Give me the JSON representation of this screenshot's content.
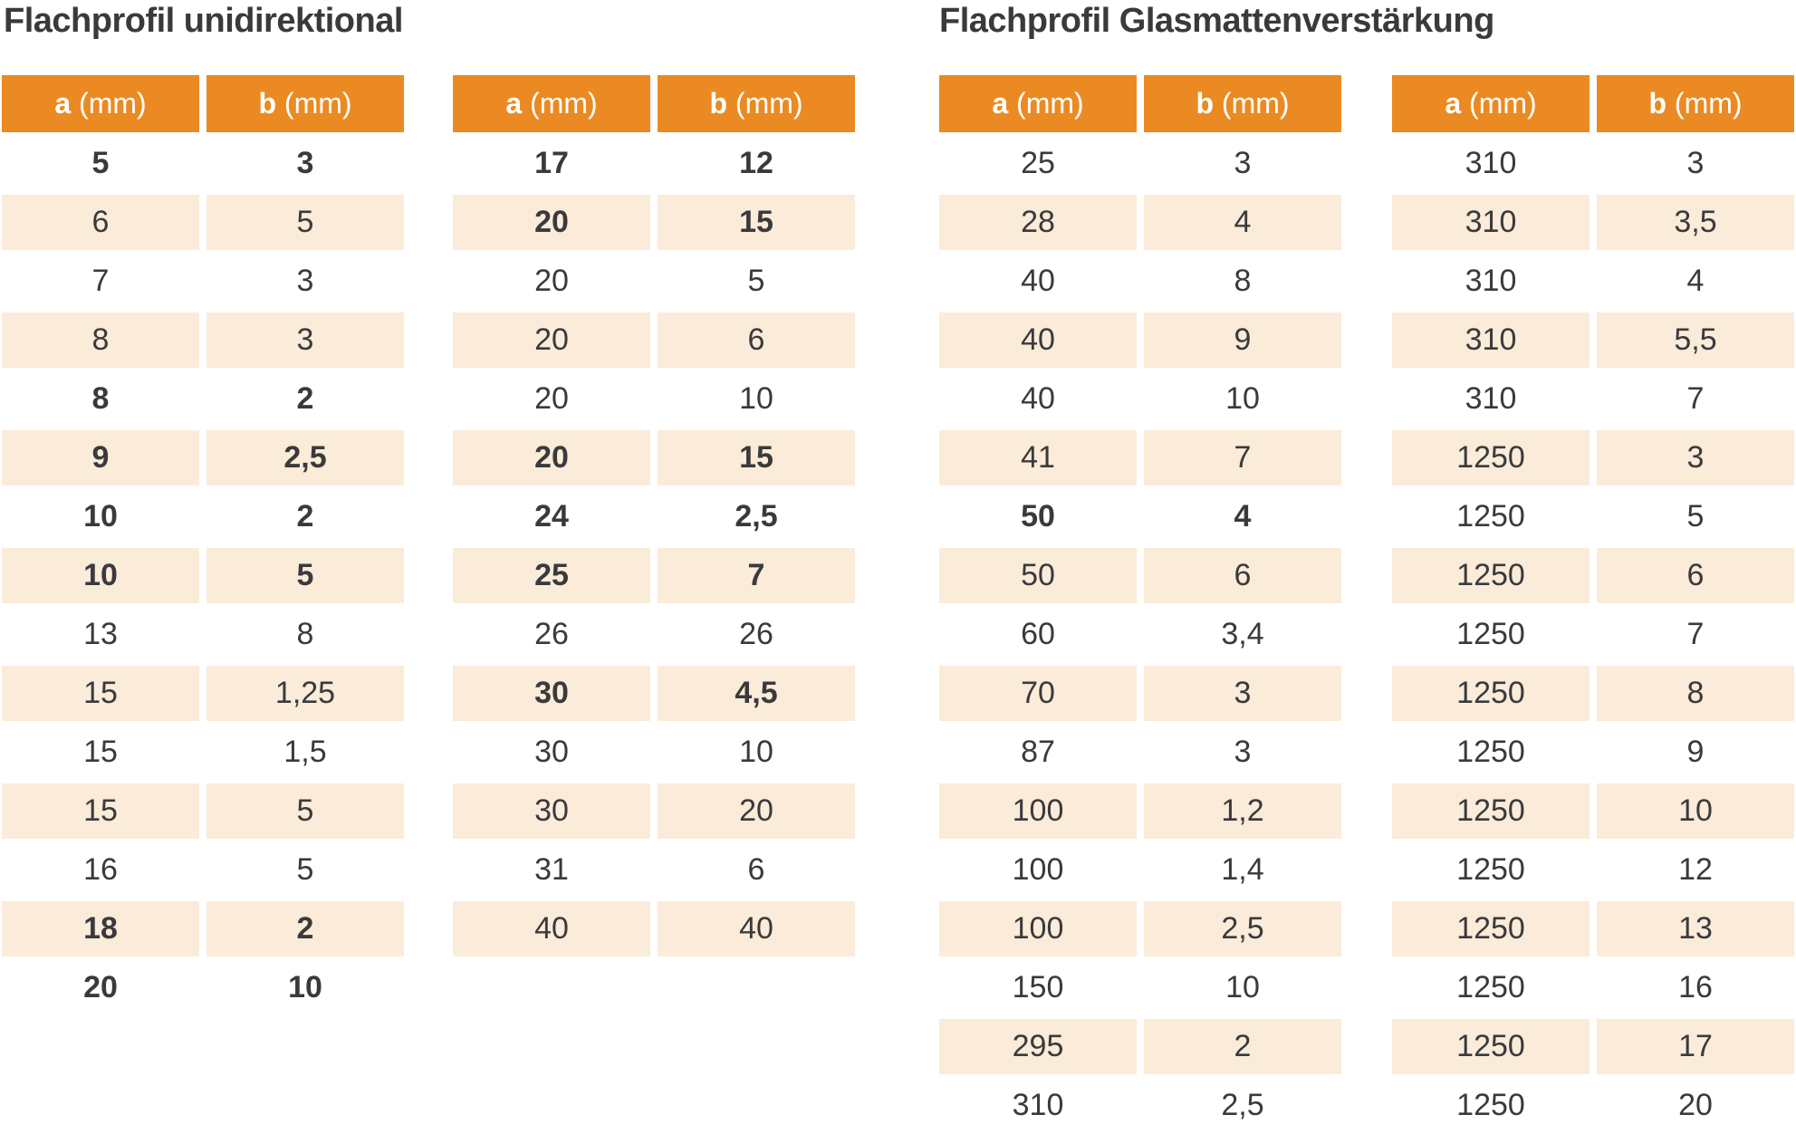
{
  "colors": {
    "header_bg": "#EB8A22",
    "header_text": "#FFFFFF",
    "row_alt_bg": "#FBEBD9",
    "text": "#3A3A3C"
  },
  "sections": [
    {
      "title": "Flachprofil unidirektional",
      "tables": [
        {
          "headers": [
            {
              "key": "a",
              "unit": "(mm)"
            },
            {
              "key": "b",
              "unit": "(mm)"
            }
          ],
          "rows": [
            {
              "a": "5",
              "b": "3",
              "bold": true
            },
            {
              "a": "6",
              "b": "5",
              "bold": false
            },
            {
              "a": "7",
              "b": "3",
              "bold": false
            },
            {
              "a": "8",
              "b": "3",
              "bold": false
            },
            {
              "a": "8",
              "b": "2",
              "bold": true
            },
            {
              "a": "9",
              "b": "2,5",
              "bold": true
            },
            {
              "a": "10",
              "b": "2",
              "bold": true
            },
            {
              "a": "10",
              "b": "5",
              "bold": true
            },
            {
              "a": "13",
              "b": "8",
              "bold": false
            },
            {
              "a": "15",
              "b": "1,25",
              "bold": false
            },
            {
              "a": "15",
              "b": "1,5",
              "bold": false
            },
            {
              "a": "15",
              "b": "5",
              "bold": false
            },
            {
              "a": "16",
              "b": "5",
              "bold": false
            },
            {
              "a": "18",
              "b": "2",
              "bold": true
            },
            {
              "a": "20",
              "b": "10",
              "bold": true
            }
          ]
        },
        {
          "headers": [
            {
              "key": "a",
              "unit": "(mm)"
            },
            {
              "key": "b",
              "unit": "(mm)"
            }
          ],
          "rows": [
            {
              "a": "17",
              "b": "12",
              "bold": true
            },
            {
              "a": "20",
              "b": "15",
              "bold": true
            },
            {
              "a": "20",
              "b": "5",
              "bold": false
            },
            {
              "a": "20",
              "b": "6",
              "bold": false
            },
            {
              "a": "20",
              "b": "10",
              "bold": false
            },
            {
              "a": "20",
              "b": "15",
              "bold": true
            },
            {
              "a": "24",
              "b": "2,5",
              "bold": true
            },
            {
              "a": "25",
              "b": "7",
              "bold": true
            },
            {
              "a": "26",
              "b": "26",
              "bold": false
            },
            {
              "a": "30",
              "b": "4,5",
              "bold": true
            },
            {
              "a": "30",
              "b": "10",
              "bold": false
            },
            {
              "a": "30",
              "b": "20",
              "bold": false
            },
            {
              "a": "31",
              "b": "6",
              "bold": false
            },
            {
              "a": "40",
              "b": "40",
              "bold": false
            }
          ]
        }
      ]
    },
    {
      "title": "Flachprofil Glasmattenverstärkung",
      "tables": [
        {
          "headers": [
            {
              "key": "a",
              "unit": "(mm)"
            },
            {
              "key": "b",
              "unit": "(mm)"
            }
          ],
          "rows": [
            {
              "a": "25",
              "b": "3",
              "bold": false
            },
            {
              "a": "28",
              "b": "4",
              "bold": false
            },
            {
              "a": "40",
              "b": "8",
              "bold": false
            },
            {
              "a": "40",
              "b": "9",
              "bold": false
            },
            {
              "a": "40",
              "b": "10",
              "bold": false
            },
            {
              "a": "41",
              "b": "7",
              "bold": false
            },
            {
              "a": "50",
              "b": "4",
              "bold": true
            },
            {
              "a": "50",
              "b": "6",
              "bold": false
            },
            {
              "a": "60",
              "b": "3,4",
              "bold": false
            },
            {
              "a": "70",
              "b": "3",
              "bold": false
            },
            {
              "a": "87",
              "b": "3",
              "bold": false
            },
            {
              "a": "100",
              "b": "1,2",
              "bold": false
            },
            {
              "a": "100",
              "b": "1,4",
              "bold": false
            },
            {
              "a": "100",
              "b": "2,5",
              "bold": false
            },
            {
              "a": "150",
              "b": "10",
              "bold": false
            },
            {
              "a": "295",
              "b": "2",
              "bold": false
            },
            {
              "a": "310",
              "b": "2,5",
              "bold": false
            }
          ]
        },
        {
          "headers": [
            {
              "key": "a",
              "unit": "(mm)"
            },
            {
              "key": "b",
              "unit": "(mm)"
            }
          ],
          "rows": [
            {
              "a": "310",
              "b": "3",
              "bold": false
            },
            {
              "a": "310",
              "b": "3,5",
              "bold": false
            },
            {
              "a": "310",
              "b": "4",
              "bold": false
            },
            {
              "a": "310",
              "b": "5,5",
              "bold": false
            },
            {
              "a": "310",
              "b": "7",
              "bold": false
            },
            {
              "a": "1250",
              "b": "3",
              "bold": false
            },
            {
              "a": "1250",
              "b": "5",
              "bold": false
            },
            {
              "a": "1250",
              "b": "6",
              "bold": false
            },
            {
              "a": "1250",
              "b": "7",
              "bold": false
            },
            {
              "a": "1250",
              "b": "8",
              "bold": false
            },
            {
              "a": "1250",
              "b": "9",
              "bold": false
            },
            {
              "a": "1250",
              "b": "10",
              "bold": false
            },
            {
              "a": "1250",
              "b": "12",
              "bold": false
            },
            {
              "a": "1250",
              "b": "13",
              "bold": false
            },
            {
              "a": "1250",
              "b": "16",
              "bold": false
            },
            {
              "a": "1250",
              "b": "17",
              "bold": false
            },
            {
              "a": "1250",
              "b": "20",
              "bold": false
            }
          ]
        }
      ]
    }
  ]
}
